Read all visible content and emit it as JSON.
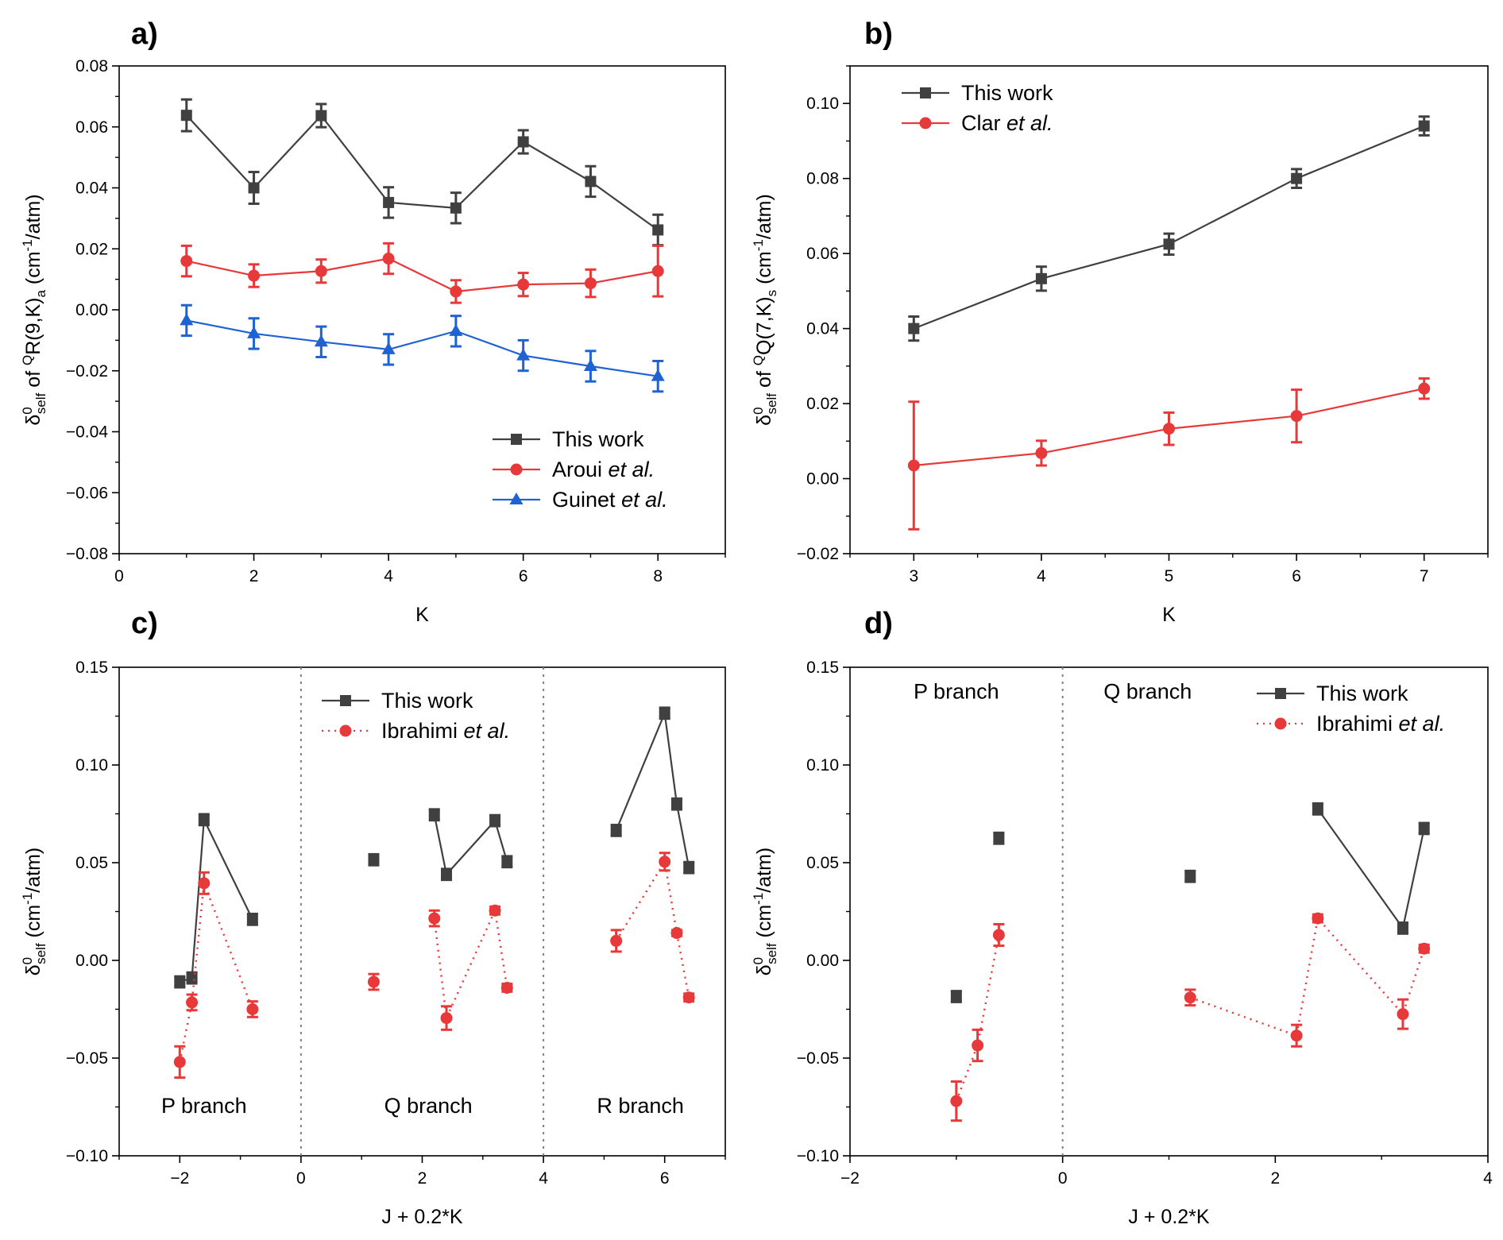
{
  "figure": {
    "panel_labels": [
      "a)",
      "b)",
      "c)",
      "d)"
    ]
  },
  "chart_data": [
    {
      "panel": "a)",
      "type": "line",
      "title": "",
      "xlabel": "K",
      "ylabel": "δ⁰self of QR(9,K)a (cm⁻¹/atm)",
      "ylabel_parts": {
        "delta": "δ",
        "sup0": "0",
        "sub": "self",
        "pre": " of ",
        "supQ": "Q",
        "mid": "R(9,K)",
        "subA": "a",
        "post": " (cm",
        "exp": "-1",
        "unit": "/atm)"
      },
      "xlim": [
        0,
        9
      ],
      "ylim": [
        -0.08,
        0.08
      ],
      "xticks": [
        0,
        2,
        4,
        6,
        8
      ],
      "xtick_labels": [
        "0",
        "2",
        "4",
        "6",
        "8"
      ],
      "yticks": [
        -0.08,
        -0.06,
        -0.04,
        -0.02,
        0.0,
        0.02,
        0.04,
        0.06,
        0.08
      ],
      "ytick_labels": [
        "−0.08",
        "−0.06",
        "−0.04",
        "−0.02",
        "0.00",
        "0.02",
        "0.04",
        "0.06",
        "0.08"
      ],
      "legend_position": "bottom-right",
      "series": [
        {
          "name": "This work",
          "color": "#404040",
          "marker": "square",
          "line": "solid",
          "x": [
            1,
            2,
            3,
            4,
            5,
            6,
            7,
            8
          ],
          "y": [
            0.0638,
            0.04,
            0.0637,
            0.0352,
            0.0334,
            0.0551,
            0.0421,
            0.0262
          ],
          "err": [
            0.0052,
            0.0052,
            0.0038,
            0.005,
            0.005,
            0.0038,
            0.005,
            0.005
          ]
        },
        {
          "name": "Aroui et al.",
          "name_plain": "Aroui ",
          "name_italic": "et al.",
          "color": "#e8393a",
          "marker": "circle",
          "line": "solid",
          "x": [
            1,
            2,
            3,
            4,
            5,
            6,
            7,
            8
          ],
          "y": [
            0.016,
            0.0112,
            0.0127,
            0.0168,
            0.006,
            0.0083,
            0.0087,
            0.0127
          ],
          "err": [
            0.005,
            0.0037,
            0.0038,
            0.005,
            0.0037,
            0.0038,
            0.0045,
            0.0083
          ]
        },
        {
          "name": "Guinet et al.",
          "name_plain": "Guinet ",
          "name_italic": "et al.",
          "color": "#1f63d3",
          "marker": "triangle",
          "line": "solid",
          "x": [
            1,
            2,
            3,
            4,
            5,
            6,
            7,
            8
          ],
          "y": [
            -0.0035,
            -0.0078,
            -0.0105,
            -0.013,
            -0.007,
            -0.015,
            -0.0185,
            -0.0218
          ],
          "err": [
            0.005,
            0.005,
            0.005,
            0.005,
            0.005,
            0.005,
            0.005,
            0.005
          ]
        }
      ]
    },
    {
      "panel": "b)",
      "type": "line",
      "title": "",
      "xlabel": "K",
      "ylabel": "δ⁰self of QQ(7,K)s (cm⁻¹/atm)",
      "ylabel_parts": {
        "delta": "δ",
        "sup0": "0",
        "sub": "self",
        "pre": " of ",
        "supQ": "Q",
        "mid": "Q(7,K)",
        "subA": "s",
        "post": " (cm",
        "exp": "-1",
        "unit": "/atm)"
      },
      "xlim": [
        2.5,
        7.5
      ],
      "ylim": [
        -0.02,
        0.11
      ],
      "xticks": [
        3,
        4,
        5,
        6,
        7
      ],
      "xtick_labels": [
        "3",
        "4",
        "5",
        "6",
        "7"
      ],
      "yticks": [
        -0.02,
        0.0,
        0.02,
        0.04,
        0.06,
        0.08,
        0.1
      ],
      "ytick_labels": [
        "−0.02",
        "0.00",
        "0.02",
        "0.04",
        "0.06",
        "0.08",
        "0.10"
      ],
      "legend_position": "top-left",
      "series": [
        {
          "name": "This work",
          "color": "#404040",
          "marker": "square",
          "line": "solid",
          "x": [
            3,
            4,
            5,
            6,
            7
          ],
          "y": [
            0.04,
            0.0533,
            0.0625,
            0.08,
            0.094
          ],
          "err": [
            0.0032,
            0.0032,
            0.0028,
            0.0025,
            0.0025
          ]
        },
        {
          "name": "Clar et al.",
          "name_plain": "Clar ",
          "name_italic": "et al.",
          "color": "#e8393a",
          "marker": "circle",
          "line": "solid",
          "x": [
            3,
            4,
            5,
            6,
            7
          ],
          "y": [
            0.0035,
            0.0068,
            0.0133,
            0.0167,
            0.024
          ],
          "err": [
            0.017,
            0.0033,
            0.0043,
            0.007,
            0.0027
          ]
        }
      ]
    },
    {
      "panel": "c)",
      "type": "line",
      "title": "",
      "xlabel": "J + 0.2*K",
      "ylabel": "δ⁰self (cm⁻¹/atm)",
      "ylabel_parts": {
        "delta": "δ",
        "sup0": "0",
        "sub": "self",
        "post": " (cm",
        "exp": "-1",
        "unit": "/atm)"
      },
      "xlim": [
        -3,
        7
      ],
      "ylim": [
        -0.1,
        0.15
      ],
      "xticks": [
        -2,
        0,
        2,
        4,
        6
      ],
      "xtick_labels": [
        "−2",
        "0",
        "2",
        "4",
        "6"
      ],
      "yticks": [
        -0.1,
        -0.05,
        0.0,
        0.05,
        0.1,
        0.15
      ],
      "ytick_labels": [
        "−0.10",
        "−0.05",
        "0.00",
        "0.05",
        "0.10",
        "0.15"
      ],
      "legend_position": "top-center",
      "dividers_x": [
        0,
        4
      ],
      "annotations": [
        {
          "text": "P branch",
          "x": -1.6,
          "y": -0.078
        },
        {
          "text": "Q branch",
          "x": 2.1,
          "y": -0.078
        },
        {
          "text": "R branch",
          "x": 5.6,
          "y": -0.078
        }
      ],
      "series": [
        {
          "name": "This work",
          "color": "#404040",
          "marker": "square",
          "line": "solid",
          "segments": [
            {
              "x": [
                -2.0,
                -1.8,
                -1.6,
                -0.8
              ],
              "y": [
                -0.011,
                -0.009,
                0.072,
                0.021
              ]
            },
            {
              "x": [
                1.2
              ],
              "y": [
                0.0515
              ]
            },
            {
              "x": [
                2.2,
                2.4,
                3.2,
                3.4
              ],
              "y": [
                0.0745,
                0.044,
                0.0715,
                0.0505
              ]
            },
            {
              "x": [
                5.2,
                6.0,
                6.2,
                6.4
              ],
              "y": [
                0.0665,
                0.1265,
                0.08,
                0.0475
              ]
            }
          ],
          "err": 0.0028
        },
        {
          "name": "Ibrahimi et al.",
          "name_plain": "Ibrahimi ",
          "name_italic": "et al.",
          "color": "#e8393a",
          "marker": "circle",
          "line": "dotted",
          "segments": [
            {
              "x": [
                -2.0,
                -1.8,
                -1.6,
                -0.8
              ],
              "y": [
                -0.052,
                -0.0215,
                0.0395,
                -0.025
              ],
              "err": [
                0.008,
                0.004,
                0.0055,
                0.004
              ]
            },
            {
              "x": [
                1.2
              ],
              "y": [
                -0.011
              ],
              "err": [
                0.004
              ]
            },
            {
              "x": [
                2.2,
                2.4,
                3.2,
                3.4
              ],
              "y": [
                0.0215,
                -0.0295,
                0.0255,
                -0.014
              ],
              "err": [
                0.004,
                0.006,
                0.002,
                0.002
              ]
            },
            {
              "x": [
                5.2,
                6.0,
                6.2,
                6.4
              ],
              "y": [
                0.01,
                0.0505,
                0.014,
                -0.019
              ],
              "err": [
                0.0055,
                0.0045,
                0.0015,
                0.002
              ]
            }
          ]
        }
      ]
    },
    {
      "panel": "d)",
      "type": "line",
      "title": "",
      "xlabel": "J + 0.2*K",
      "ylabel": "δ⁰self (cm⁻¹/atm)",
      "ylabel_parts": {
        "delta": "δ",
        "sup0": "0",
        "sub": "self",
        "post": " (cm",
        "exp": "-1",
        "unit": "/atm)"
      },
      "xlim": [
        -2,
        4
      ],
      "ylim": [
        -0.1,
        0.15
      ],
      "xticks": [
        -2,
        0,
        2,
        4
      ],
      "xtick_labels": [
        "−2",
        "0",
        "2",
        "4"
      ],
      "yticks": [
        -0.1,
        -0.05,
        0.0,
        0.05,
        0.1,
        0.15
      ],
      "ytick_labels": [
        "−0.10",
        "−0.05",
        "0.00",
        "0.05",
        "0.10",
        "0.15"
      ],
      "legend_position": "top-right",
      "dividers_x": [
        0
      ],
      "annotations": [
        {
          "text": "P branch",
          "x": -1.0,
          "y": 0.134
        },
        {
          "text": "Q branch",
          "x": 0.8,
          "y": 0.134
        }
      ],
      "series": [
        {
          "name": "This work",
          "color": "#404040",
          "marker": "square",
          "line": "solid",
          "segments": [
            {
              "x": [
                -1.0
              ],
              "y": [
                -0.0185
              ]
            },
            {
              "x": [
                -0.6
              ],
              "y": [
                0.0625
              ]
            },
            {
              "x": [
                1.2
              ],
              "y": [
                0.043
              ]
            },
            {
              "x": [
                2.4,
                3.2,
                3.4
              ],
              "y": [
                0.0775,
                0.0165,
                0.0675
              ]
            }
          ],
          "err": 0.0028
        },
        {
          "name": "Ibrahimi et al.",
          "name_plain": "Ibrahimi ",
          "name_italic": "et al.",
          "color": "#e8393a",
          "marker": "circle",
          "line": "dotted",
          "segments": [
            {
              "x": [
                -1.0,
                -0.8,
                -0.6
              ],
              "y": [
                -0.072,
                -0.0435,
                0.013
              ],
              "err": [
                0.01,
                0.008,
                0.0055
              ]
            },
            {
              "x": [
                1.2,
                2.2,
                2.4,
                3.2,
                3.4
              ],
              "y": [
                -0.019,
                -0.0385,
                0.0215,
                -0.0275,
                0.006
              ],
              "err": [
                0.004,
                0.0055,
                0.002,
                0.0075,
                0.002
              ]
            }
          ]
        }
      ]
    }
  ]
}
